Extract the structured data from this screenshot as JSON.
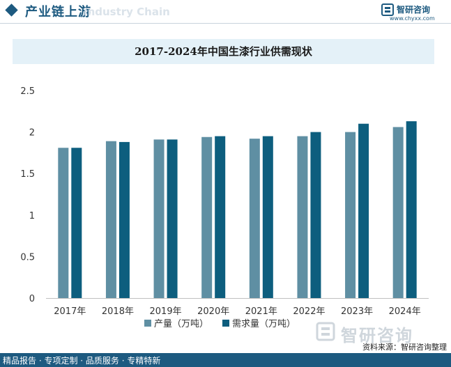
{
  "header": {
    "title": "产业链上游",
    "ghost": "Industry Chain",
    "brand_name": "智研咨询",
    "brand_url": "www.chyxx.com"
  },
  "chart_data": {
    "type": "bar",
    "title": "2017-2024年中国生漆行业供需现状",
    "categories": [
      "2017年",
      "2018年",
      "2019年",
      "2020年",
      "2021年",
      "2022年",
      "2023年",
      "2024年"
    ],
    "series": [
      {
        "name": "产量（万吨）",
        "color": "#5f8fa3",
        "values": [
          1.81,
          1.89,
          1.91,
          1.94,
          1.92,
          1.95,
          2.0,
          2.06
        ]
      },
      {
        "name": "需求量（万吨）",
        "color": "#0d5e7e",
        "values": [
          1.81,
          1.88,
          1.91,
          1.95,
          1.95,
          2.0,
          2.1,
          2.13
        ]
      }
    ],
    "ylim": [
      0,
      2.5
    ],
    "yticks": [
      "0",
      "0.5",
      "1",
      "1.5",
      "2",
      "2.5"
    ],
    "grid": false,
    "legend": "bottom"
  },
  "watermark": {
    "name": "智研咨询"
  },
  "source": "资料来源：智研咨询整理",
  "footer": "精品报告 · 专项定制 · 品质服务 · 专精特新"
}
